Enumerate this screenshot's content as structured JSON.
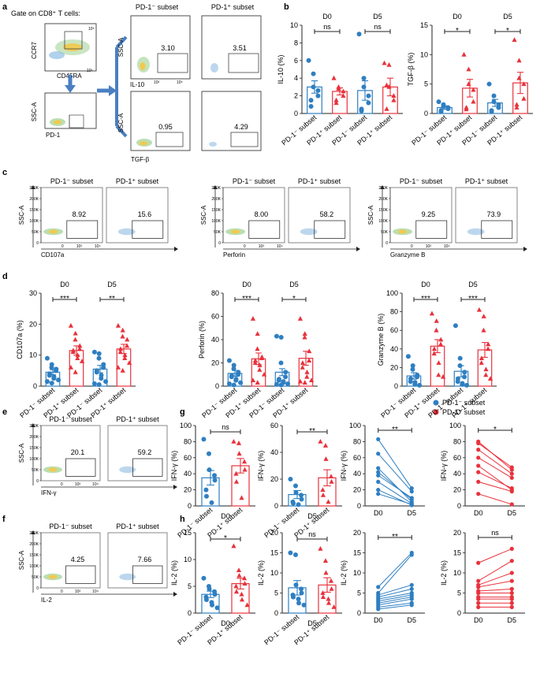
{
  "colors": {
    "blue": "#2f7fc1",
    "red": "#e8323c",
    "axis": "#222222",
    "box": "#555555",
    "gray": "#777777"
  },
  "panel_a": {
    "label": "a",
    "gate_text": "Gate on CD8⁺ T cells:",
    "ccr7": "CCR7",
    "cd45ra": "CD45RA",
    "ssca": "SSC-A",
    "pd1": "PD-1",
    "header_neg": "PD-1⁻ subset",
    "header_pos": "PD-1⁺ subset",
    "il10": "IL-10",
    "tgfb": "TGF-β",
    "val_il10_neg": "3.10",
    "val_il10_pos": "3.51",
    "val_tgfb_neg": "0.95",
    "val_tgfb_pos": "4.29",
    "ticks": {
      "t0": "0",
      "t3": "10³",
      "t4": "10⁴",
      "t5": "10⁵"
    }
  },
  "panel_c": {
    "label": "c",
    "header_neg": "PD-1⁻ subset",
    "header_pos": "PD-1⁺ subset",
    "ylabel": "SSC-A",
    "yticks": [
      "250K",
      "200K",
      "150K",
      "100K",
      "50K",
      "0"
    ],
    "xticks": [
      "0",
      "10³",
      "10⁴"
    ],
    "markers": [
      "CD107a",
      "Perforin",
      "Granzyme B"
    ],
    "values_neg": [
      "8.92",
      "8.00",
      "9.25"
    ],
    "values_pos": [
      "15.6",
      "58.2",
      "73.9"
    ]
  },
  "panels_ef": {
    "label_e": "e",
    "label_f": "f",
    "header_neg": "PD-1⁻ subset",
    "header_pos": "PD-1⁺ subset",
    "ylabel": "SSC-A",
    "yticks": [
      "250K",
      "200K",
      "150K",
      "100K",
      "50K",
      "0"
    ],
    "xticks": [
      "0",
      "10³",
      "10⁴"
    ],
    "marker_e": "IFN-γ",
    "marker_f": "IL-2",
    "e_neg": "20.1",
    "e_pos": "59.2",
    "f_neg": "4.25",
    "f_pos": "7.66"
  },
  "panel_labels": {
    "b": "b",
    "d": "d",
    "g": "g",
    "h": "h"
  },
  "legend": {
    "neg": "PD-1⁻ subset",
    "pos": "PD-1⁺ subset"
  },
  "chart_data": [
    {
      "id": "b1",
      "type": "bar",
      "ylabel": "IL-10 (%)",
      "ylim": [
        0,
        10
      ],
      "yticks": [
        0,
        2,
        4,
        6,
        8,
        10
      ],
      "categories": [
        "PD-1⁻ subset",
        "PD-1⁺ subset",
        "PD-1⁻ subset",
        "PD-1⁺ subset"
      ],
      "groups": [
        "D0",
        "D5"
      ],
      "sig": [
        "ns",
        "ns"
      ],
      "series": [
        {
          "name": "PD-1⁻ subset",
          "mean": 3.0,
          "sem": 0.7,
          "points": [
            6.0,
            4.5,
            3.0,
            2.6,
            2.0,
            1.5,
            0.8
          ]
        },
        {
          "name": "PD-1⁺ subset",
          "mean": 2.5,
          "sem": 0.4,
          "points": [
            4.0,
            3.0,
            2.8,
            2.5,
            2.0,
            1.5,
            1.2
          ]
        },
        {
          "name": "PD-1⁻ subset",
          "mean": 2.6,
          "sem": 1.1,
          "points": [
            9.0,
            4.0,
            3.0,
            2.0,
            1.2,
            0.5,
            0.3
          ]
        },
        {
          "name": "PD-1⁺ subset",
          "mean": 3.0,
          "sem": 1.0,
          "points": [
            5.7,
            5.5,
            3.0,
            2.0,
            1.5,
            0.5,
            3.2
          ]
        }
      ]
    },
    {
      "id": "b2",
      "type": "bar",
      "ylabel": "TGF-β (%)",
      "ylim": [
        0,
        15
      ],
      "yticks": [
        0,
        5,
        10,
        15
      ],
      "categories": [
        "PD-1⁻ subset",
        "PD-1⁺ subset",
        "PD-1⁻ subset",
        "PD-1⁺ subset"
      ],
      "groups": [
        "D0",
        "D5"
      ],
      "sig": [
        "*",
        "*"
      ],
      "series": [
        {
          "name": "PD-1⁻ subset",
          "mean": 1.0,
          "sem": 0.3,
          "points": [
            2.0,
            1.5,
            1.2,
            1.0,
            0.8,
            0.5,
            0.3
          ]
        },
        {
          "name": "PD-1⁺ subset",
          "mean": 4.3,
          "sem": 1.5,
          "points": [
            10.0,
            7.5,
            5.0,
            4.0,
            2.0,
            1.0,
            0.7
          ]
        },
        {
          "name": "PD-1⁻ subset",
          "mean": 1.8,
          "sem": 0.6,
          "points": [
            5.0,
            3.0,
            2.0,
            1.5,
            1.0,
            0.5,
            0.3
          ]
        },
        {
          "name": "PD-1⁺ subset",
          "mean": 5.2,
          "sem": 1.8,
          "points": [
            12.5,
            9.0,
            6.0,
            5.0,
            2.5,
            1.5,
            1.0
          ]
        }
      ]
    },
    {
      "id": "d1",
      "type": "bar",
      "ylabel": "CD107a (%)",
      "ylim": [
        0,
        30
      ],
      "yticks": [
        0,
        10,
        20,
        30
      ],
      "categories": [
        "PD-1⁻ subset",
        "PD-1⁺ subset",
        "PD-1⁻ subset",
        "PD-1⁺ subset"
      ],
      "groups": [
        "D0",
        "D5"
      ],
      "sig": [
        "***",
        "**"
      ],
      "series": [
        {
          "name": "PD-1⁻ subset",
          "mean": 4.5,
          "sem": 0.8,
          "points": [
            9.0,
            7.0,
            6.0,
            5.5,
            5.0,
            4.0,
            3.5,
            3.0,
            2.5,
            2.0,
            1.5,
            1.0
          ]
        },
        {
          "name": "PD-1⁺ subset",
          "mean": 11.5,
          "sem": 1.5,
          "points": [
            19.5,
            17.0,
            15.0,
            13.0,
            12.0,
            11.5,
            11.0,
            10.0,
            9.0,
            8.0,
            6.0,
            4.5
          ]
        },
        {
          "name": "PD-1⁻ subset",
          "mean": 5.5,
          "sem": 1.2,
          "points": [
            11.0,
            10.5,
            9.0,
            7.0,
            6.0,
            5.0,
            4.5,
            3.5,
            2.5,
            1.5,
            0.8,
            0.5
          ]
        },
        {
          "name": "PD-1⁺ subset",
          "mean": 12.0,
          "sem": 1.5,
          "points": [
            19.5,
            18.0,
            16.0,
            15.0,
            13.0,
            12.0,
            11.0,
            10.0,
            9.0,
            7.5,
            6.0,
            5.0
          ]
        }
      ]
    },
    {
      "id": "d2",
      "type": "bar",
      "ylabel": "Perforin (%)",
      "ylim": [
        0,
        80
      ],
      "yticks": [
        0,
        20,
        40,
        60,
        80
      ],
      "categories": [
        "PD-1⁻ subset",
        "PD-1⁺ subset",
        "PD-1⁻ subset",
        "PD-1⁺ subset"
      ],
      "groups": [
        "D0",
        "D5"
      ],
      "sig": [
        "***",
        "*"
      ],
      "series": [
        {
          "name": "PD-1⁻ subset",
          "mean": 11.0,
          "sem": 2.5,
          "points": [
            22.0,
            18.0,
            15.0,
            12.0,
            10.0,
            9.0,
            8.0,
            6.0,
            5.0,
            3.0,
            2.0,
            1.0
          ]
        },
        {
          "name": "PD-1⁺ subset",
          "mean": 23.5,
          "sem": 5.0,
          "points": [
            58.0,
            45.0,
            32.0,
            25.0,
            24.0,
            22.0,
            20.0,
            18.0,
            14.0,
            10.0,
            5.0,
            3.0
          ]
        },
        {
          "name": "PD-1⁻ subset",
          "mean": 12.0,
          "sem": 3.0,
          "points": [
            43.0,
            42.0,
            20.0,
            12.0,
            8.0,
            6.0,
            5.0,
            4.0,
            3.0,
            2.0,
            1.5,
            1.0
          ]
        },
        {
          "name": "PD-1⁺ subset",
          "mean": 24.0,
          "sem": 6.0,
          "points": [
            58.0,
            45.0,
            42.0,
            30.0,
            22.0,
            20.0,
            16.0,
            12.0,
            8.0,
            5.0,
            4.0,
            3.0
          ]
        }
      ]
    },
    {
      "id": "d3",
      "type": "bar",
      "ylabel": "Granzyme B (%)",
      "ylim": [
        0,
        100
      ],
      "yticks": [
        0,
        20,
        40,
        60,
        80,
        100
      ],
      "categories": [
        "PD-1⁻ subset",
        "PD-1⁺ subset",
        "PD-1⁻ subset",
        "PD-1⁺ subset"
      ],
      "groups": [
        "D0",
        "D5"
      ],
      "sig": [
        "***",
        "***"
      ],
      "series": [
        {
          "name": "PD-1⁻ subset",
          "mean": 11.0,
          "sem": 3.5,
          "points": [
            32.0,
            22.0,
            18.0,
            12.0,
            10.0,
            8.0,
            5.0,
            4.0,
            2.0,
            1.0
          ]
        },
        {
          "name": "PD-1⁺ subset",
          "mean": 43.0,
          "sem": 7.0,
          "points": [
            78.0,
            70.0,
            60.0,
            50.0,
            45.0,
            40.0,
            35.0,
            25.0,
            12.0,
            10.0
          ]
        },
        {
          "name": "PD-1⁻ subset",
          "mean": 16.0,
          "sem": 6.0,
          "points": [
            65.0,
            30.0,
            22.0,
            15.0,
            10.0,
            8.0,
            5.0,
            3.0,
            2.0,
            1.0
          ]
        },
        {
          "name": "PD-1⁺ subset",
          "mean": 39.0,
          "sem": 8.0,
          "points": [
            82.0,
            75.0,
            60.0,
            45.0,
            40.0,
            30.0,
            25.0,
            18.0,
            12.0,
            8.0
          ]
        }
      ]
    },
    {
      "id": "g1",
      "type": "bar",
      "ylabel": "IFN-γ (%)",
      "xlabel": "D0",
      "ylim": [
        0,
        100
      ],
      "yticks": [
        0,
        20,
        40,
        60,
        80,
        100
      ],
      "categories": [
        "PD-1⁻ subset",
        "PD-1⁺ subset"
      ],
      "sig": [
        "ns"
      ],
      "series": [
        {
          "name": "PD-1⁻ subset",
          "mean": 35.0,
          "sem": 9.0,
          "points": [
            83.0,
            65.0,
            45.0,
            38.0,
            32.0,
            20.0,
            12.0,
            4.0
          ]
        },
        {
          "name": "PD-1⁺ subset",
          "mean": 50.0,
          "sem": 9.0,
          "points": [
            80.0,
            78.0,
            65.0,
            55.0,
            45.0,
            40.0,
            30.0,
            10.0
          ]
        }
      ]
    },
    {
      "id": "g2",
      "type": "bar",
      "ylabel": "IFN-γ (%)",
      "xlabel": "D5",
      "ylim": [
        0,
        60
      ],
      "yticks": [
        0,
        20,
        40,
        60
      ],
      "categories": [
        "PD-1⁻ subset",
        "PD-1⁺ subset"
      ],
      "sig": [
        "**"
      ],
      "series": [
        {
          "name": "PD-1⁻ subset",
          "mean": 8.5,
          "sem": 3.0,
          "points": [
            20.0,
            15.0,
            10.0,
            8.0,
            5.0,
            3.0,
            2.0,
            1.0
          ]
        },
        {
          "name": "PD-1⁺ subset",
          "mean": 21.0,
          "sem": 6.0,
          "points": [
            48.0,
            45.0,
            35.0,
            22.0,
            18.0,
            12.0,
            8.0,
            3.0
          ]
        }
      ]
    },
    {
      "id": "g3",
      "type": "line",
      "ylabel": "IFN-γ (%)",
      "categories": [
        "D0",
        "D5"
      ],
      "ylim": [
        0,
        100
      ],
      "yticks": [
        0,
        20,
        40,
        60,
        80,
        100
      ],
      "sig": "**",
      "series_name": "PD-1⁻ subset",
      "pairs": [
        [
          83,
          22
        ],
        [
          65,
          18
        ],
        [
          47,
          5
        ],
        [
          42,
          8
        ],
        [
          38,
          10
        ],
        [
          30,
          3
        ],
        [
          20,
          1
        ],
        [
          15,
          2
        ]
      ]
    },
    {
      "id": "g4",
      "type": "line",
      "ylabel": "IFN-γ (%)",
      "categories": [
        "D0",
        "D5"
      ],
      "ylim": [
        0,
        100
      ],
      "yticks": [
        0,
        20,
        40,
        60,
        80,
        100
      ],
      "sig": "*",
      "series_name": "PD-1⁺ subset",
      "pairs": [
        [
          80,
          45
        ],
        [
          78,
          48
        ],
        [
          70,
          40
        ],
        [
          60,
          35
        ],
        [
          50,
          20
        ],
        [
          42,
          22
        ],
        [
          30,
          18
        ],
        [
          15,
          2
        ]
      ]
    },
    {
      "id": "h1",
      "type": "bar",
      "ylabel": "IL-2 (%)",
      "xlabel": "D0",
      "ylim": [
        0,
        15
      ],
      "yticks": [
        0,
        5,
        10,
        15
      ],
      "categories": [
        "PD-1⁻ subset",
        "PD-1⁺ subset"
      ],
      "sig": [
        "*"
      ],
      "series": [
        {
          "name": "PD-1⁻ subset",
          "mean": 3.5,
          "sem": 0.6,
          "points": [
            6.5,
            5.0,
            4.5,
            4.0,
            3.5,
            3.0,
            2.5,
            2.0,
            1.5,
            1.0
          ]
        },
        {
          "name": "PD-1⁺ subset",
          "mean": 5.5,
          "sem": 1.0,
          "points": [
            12.5,
            8.0,
            7.0,
            6.5,
            5.5,
            5.0,
            4.0,
            3.5,
            2.5,
            1.5
          ]
        }
      ]
    },
    {
      "id": "h2",
      "type": "bar",
      "ylabel": "IL-2 (%)",
      "xlabel": "D5",
      "ylim": [
        0,
        20
      ],
      "yticks": [
        0,
        5,
        10,
        15,
        20
      ],
      "categories": [
        "PD-1⁻ subset",
        "PD-1⁺ subset"
      ],
      "sig": [
        "ns"
      ],
      "series": [
        {
          "name": "PD-1⁻ subset",
          "mean": 6.3,
          "sem": 1.8,
          "points": [
            15.0,
            14.5,
            7.0,
            6.0,
            5.0,
            4.5,
            4.0,
            3.5,
            2.5,
            2.0
          ]
        },
        {
          "name": "PD-1⁺ subset",
          "mean": 7.0,
          "sem": 1.8,
          "points": [
            16.0,
            13.0,
            10.0,
            8.0,
            6.0,
            5.0,
            4.0,
            3.5,
            2.5,
            1.5
          ]
        }
      ]
    },
    {
      "id": "h3",
      "type": "line",
      "ylabel": "IL-2 (%)",
      "categories": [
        "D0",
        "D5"
      ],
      "ylim": [
        0,
        20
      ],
      "yticks": [
        0,
        5,
        10,
        15,
        20
      ],
      "sig": "**",
      "series_name": "PD-1⁻ subset",
      "pairs": [
        [
          6.5,
          15
        ],
        [
          5,
          14.5
        ],
        [
          4.5,
          7
        ],
        [
          4,
          6
        ],
        [
          3.5,
          5
        ],
        [
          3,
          4.5
        ],
        [
          2.5,
          4
        ],
        [
          2,
          3.5
        ],
        [
          1.5,
          2.5
        ],
        [
          1,
          2
        ]
      ]
    },
    {
      "id": "h4",
      "type": "line",
      "ylabel": "IL-2 (%)",
      "categories": [
        "D0",
        "D5"
      ],
      "ylim": [
        0,
        20
      ],
      "yticks": [
        0,
        5,
        10,
        15,
        20
      ],
      "sig": "ns",
      "series_name": "PD-1⁺ subset",
      "pairs": [
        [
          12.5,
          16
        ],
        [
          8,
          13
        ],
        [
          7,
          10
        ],
        [
          6.5,
          8
        ],
        [
          5.5,
          6
        ],
        [
          5,
          5
        ],
        [
          4,
          4
        ],
        [
          3.5,
          3.5
        ],
        [
          2.5,
          2.5
        ],
        [
          1.5,
          1.5
        ]
      ]
    }
  ]
}
